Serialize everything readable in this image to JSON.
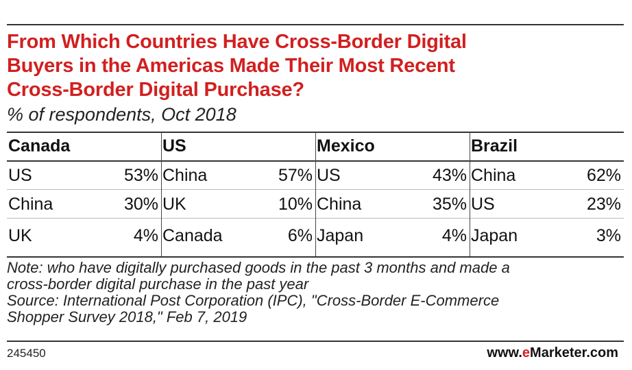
{
  "title_lines": [
    "From Which Countries Have Cross-Border Digital",
    "Buyers in the Americas Made Their Most Recent",
    "Cross-Border Digital Purchase?"
  ],
  "subtitle": "% of respondents, Oct 2018",
  "chart_data": {
    "type": "table",
    "groups": [
      {
        "name": "Canada",
        "rows": [
          {
            "country": "US",
            "value": 53,
            "label": "53%"
          },
          {
            "country": "China",
            "value": 30,
            "label": "30%"
          },
          {
            "country": "UK",
            "value": 4,
            "label": "4%"
          }
        ]
      },
      {
        "name": "US",
        "rows": [
          {
            "country": "China",
            "value": 57,
            "label": "57%"
          },
          {
            "country": "UK",
            "value": 10,
            "label": "10%"
          },
          {
            "country": "Canada",
            "value": 6,
            "label": "6%"
          }
        ]
      },
      {
        "name": "Mexico",
        "rows": [
          {
            "country": "US",
            "value": 43,
            "label": "43%"
          },
          {
            "country": "China",
            "value": 35,
            "label": "35%"
          },
          {
            "country": "Japan",
            "value": 4,
            "label": "4%"
          }
        ]
      },
      {
        "name": "Brazil",
        "rows": [
          {
            "country": "China",
            "value": 62,
            "label": "62%"
          },
          {
            "country": "US",
            "value": 23,
            "label": "23%"
          },
          {
            "country": "Japan",
            "value": 3,
            "label": "3%"
          }
        ]
      }
    ]
  },
  "note_lines": [
    "Note: who have digitally purchased goods in the past 3 months and made a",
    "cross-border digital purchase in the past year",
    "Source: International Post Corporation (IPC), \"Cross-Border E-Commerce",
    "Shopper Survey 2018,\" Feb 7, 2019"
  ],
  "chart_id": "245450",
  "brand": {
    "prefix": "www.",
    "accent": "e",
    "name": "Marketer",
    "suffix": ".com"
  },
  "colors": {
    "title": "#d21f1f",
    "rules": "#333333",
    "text": "#111111"
  }
}
